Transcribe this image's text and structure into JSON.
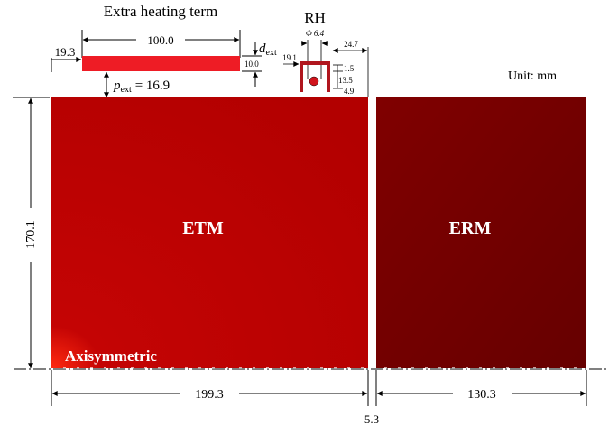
{
  "labels": {
    "extra_heating_title": "Extra heating term",
    "rh": "RH",
    "unit": "Unit: mm",
    "etm": "ETM",
    "erm": "ERM",
    "axisymmetric": "Axisymmetric"
  },
  "dimensions": {
    "heater_length": "100.0",
    "heater_offset": "19.3",
    "d_ext_symbol": "d",
    "d_ext_sub": "ext",
    "d_ext_value": "10.0",
    "p_ext_symbol": "p",
    "p_ext_sub": "ext",
    "p_ext_value": "= 16.9",
    "rh_diameter": "Φ 6.4",
    "rh_x": "19.1",
    "rh_right": "24.7",
    "rh_a": "1.5",
    "rh_b": "13.5",
    "rh_c": "4.9",
    "height": "170.1",
    "etm_width": "199.3",
    "gap": "5.3",
    "erm_width": "130.3"
  },
  "colors": {
    "etm_hot": "#ff2a10",
    "etm_mid": "#c40404",
    "etm_cool": "#b20000",
    "erm_dark": "#660000",
    "erm_mid": "#800000",
    "heater_fill": "#ee1c25",
    "rh_fill": "#b0161e",
    "rh_ball": "#d0141c"
  }
}
